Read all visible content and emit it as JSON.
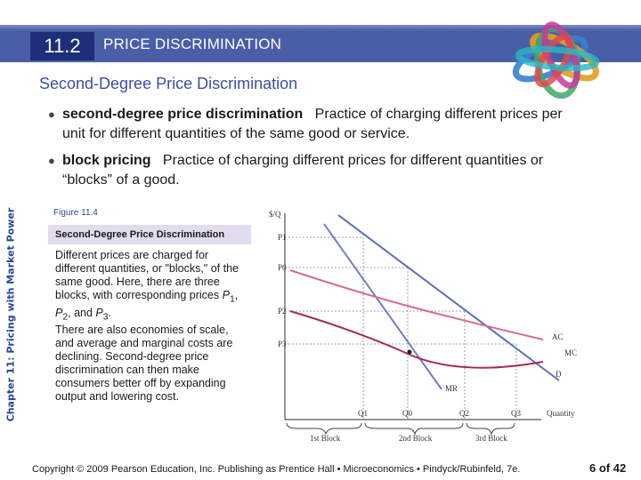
{
  "header": {
    "section_number": "11.2",
    "section_title": "PRICE DISCRIMINATION"
  },
  "subtitle": "Second-Degree Price Discrimination",
  "side_label": "Chapter 11: Pricing with Market Power",
  "bullets": [
    {
      "term": "second-degree price discrimination",
      "definition": "Practice of charging different prices per unit for different quantities of the same good or service."
    },
    {
      "term": "block pricing",
      "definition": "Practice of charging different prices for different quantities or “blocks” of a good."
    }
  ],
  "figure": {
    "label": "Figure 11.4",
    "title": "Second-Degree Price Discrimination",
    "desc_p1_start": "Different prices are charged for different quantities, or \"blocks,\" of the same good.  Here, there are three blocks, with corresponding prices ",
    "p1_base": "P",
    "p1_sub": "1",
    "sep1": ", ",
    "p2_base": "P",
    "p2_sub": "2",
    "sep2": ", and ",
    "p3_base": "P",
    "p3_sub": "3",
    "desc_p1_end": ".",
    "desc_p2": "There are also economies of scale, and average and marginal costs are declining.  Second-degree price discrimination can then make consumers better off by expanding output and lowering cost.",
    "graph": {
      "y_axis_label": "$/Q",
      "x_axis_label": "Quantity",
      "price_labels": [
        "P1",
        "P0",
        "P2",
        "P3"
      ],
      "quantity_labels": [
        "Q1",
        "Q0",
        "Q2",
        "Q3"
      ],
      "curve_labels": {
        "ac": "AC",
        "mc": "MC",
        "d": "D",
        "mr": "MR"
      },
      "block_labels": [
        "1st Block",
        "2nd Block",
        "3rd Block"
      ],
      "colors": {
        "d": "#5b6dbd",
        "mr": "#6d7fc8",
        "ac": "#d86c8a",
        "mc": "#a42a58",
        "axis": "#555555"
      }
    }
  },
  "footer": {
    "copyright": "Copyright © 2009 Pearson Education, Inc. Publishing as Prentice Hall • Microeconomics • Pindyck/Rubinfeld, 7e.",
    "page": "6 of 42"
  }
}
